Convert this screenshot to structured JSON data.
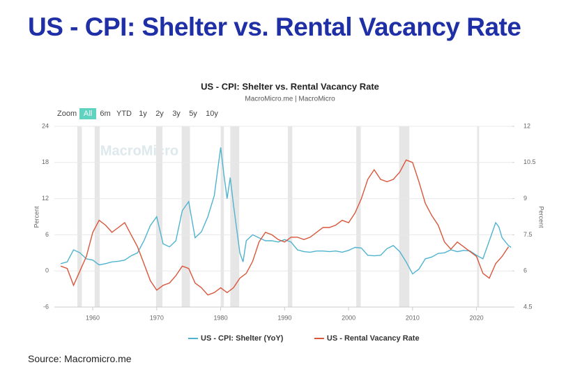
{
  "heading": "US - CPI: Shelter vs. Rental Vacancy Rate",
  "source": "Source: Macromicro.me",
  "chart_data": {
    "type": "line",
    "title": "US - CPI: Shelter vs. Rental Vacancy Rate",
    "subtitle": "MacroMicro.me | MacroMicro",
    "watermark": "MacroMicro",
    "zoom_label": "Zoom",
    "zoom_buttons": [
      "All",
      "6m",
      "YTD",
      "1y",
      "2y",
      "3y",
      "5y",
      "10y"
    ],
    "y_label": "Percent",
    "y2_label": "Percent",
    "xlim": [
      1954,
      2025.6
    ],
    "xticks": [
      1960,
      1970,
      1980,
      1990,
      2000,
      2010,
      2020
    ],
    "ylim": [
      -6,
      24
    ],
    "yticks": [
      -6,
      0,
      6,
      12,
      18,
      24
    ],
    "y2lim": [
      4.5,
      12
    ],
    "y2ticks": [
      4.5,
      6,
      7.5,
      9,
      10.5,
      12
    ],
    "grid": true,
    "recessions": [
      [
        1957.6,
        1958.3
      ],
      [
        1960.3,
        1961.1
      ],
      [
        1969.9,
        1970.9
      ],
      [
        1973.9,
        1975.2
      ],
      [
        1980.0,
        1980.5
      ],
      [
        1981.5,
        1982.9
      ],
      [
        1990.5,
        1991.2
      ],
      [
        2001.2,
        2001.9
      ],
      [
        2007.9,
        2009.5
      ],
      [
        2020.1,
        2020.4
      ]
    ],
    "series": [
      {
        "name": "US - CPI: Shelter (YoY)",
        "color": "#4fb3cf",
        "axis": "y",
        "x": [
          1955,
          1956,
          1957,
          1958,
          1959,
          1960,
          1961,
          1962,
          1963,
          1964,
          1965,
          1966,
          1967,
          1968,
          1969,
          1970,
          1971,
          1972,
          1973,
          1974,
          1975,
          1976,
          1977,
          1978,
          1979,
          1980,
          1980.5,
          1981,
          1981.5,
          1982,
          1983,
          1983.5,
          1984,
          1985,
          1986,
          1987,
          1988,
          1989,
          1990,
          1991,
          1992,
          1993,
          1994,
          1995,
          1996,
          1997,
          1998,
          1999,
          2000,
          2001,
          2002,
          2003,
          2004,
          2005,
          2006,
          2007,
          2008,
          2009,
          2010,
          2011,
          2012,
          2013,
          2014,
          2015,
          2016,
          2017,
          2018,
          2019,
          2020,
          2021,
          2022,
          2023,
          2023.5,
          2024,
          2025,
          2025.4
        ],
        "values": [
          1.2,
          1.5,
          3.5,
          3.0,
          2.0,
          1.8,
          1.0,
          1.2,
          1.5,
          1.6,
          1.8,
          2.5,
          3.0,
          5.0,
          7.5,
          9.0,
          4.5,
          4.0,
          5.0,
          10.0,
          11.5,
          5.5,
          6.5,
          9.0,
          12.5,
          20.5,
          16,
          12,
          15.5,
          11,
          3.0,
          1.5,
          5,
          6.0,
          5.5,
          5.0,
          5.0,
          4.8,
          5.2,
          4.8,
          3.5,
          3.2,
          3.1,
          3.3,
          3.3,
          3.2,
          3.3,
          3.1,
          3.4,
          3.9,
          3.8,
          2.6,
          2.5,
          2.6,
          3.7,
          4.2,
          3.2,
          1.5,
          -0.5,
          0.3,
          2.0,
          2.3,
          2.9,
          3.0,
          3.5,
          3.2,
          3.4,
          3.3,
          2.6,
          2.0,
          5.0,
          8.0,
          7.3,
          5.5,
          4.2,
          3.9
        ]
      },
      {
        "name": "US - Rental Vacancy Rate",
        "color": "#d9563b",
        "axis": "y2",
        "x": [
          1955,
          1956,
          1957,
          1958,
          1959,
          1960,
          1961,
          1962,
          1963,
          1964,
          1965,
          1966,
          1967,
          1968,
          1969,
          1970,
          1971,
          1972,
          1973,
          1974,
          1975,
          1976,
          1977,
          1978,
          1979,
          1980,
          1981,
          1982,
          1983,
          1984,
          1985,
          1986,
          1987,
          1988,
          1989,
          1990,
          1991,
          1992,
          1993,
          1994,
          1995,
          1996,
          1997,
          1998,
          1999,
          2000,
          2001,
          2002,
          2003,
          2004,
          2005,
          2006,
          2007,
          2008,
          2009,
          2010,
          2011,
          2012,
          2013,
          2014,
          2015,
          2016,
          2017,
          2018,
          2019,
          2020,
          2021,
          2022,
          2023,
          2024,
          2025
        ],
        "values": [
          6.2,
          6.1,
          5.4,
          6.0,
          6.6,
          7.6,
          8.1,
          7.9,
          7.6,
          7.8,
          8.0,
          7.5,
          7.0,
          6.3,
          5.6,
          5.2,
          5.4,
          5.5,
          5.8,
          6.2,
          6.1,
          5.5,
          5.3,
          5.0,
          5.1,
          5.3,
          5.1,
          5.3,
          5.7,
          5.9,
          6.4,
          7.2,
          7.6,
          7.5,
          7.3,
          7.2,
          7.4,
          7.4,
          7.3,
          7.4,
          7.6,
          7.8,
          7.8,
          7.9,
          8.1,
          8.0,
          8.4,
          9.0,
          9.8,
          10.2,
          9.8,
          9.7,
          9.8,
          10.1,
          10.6,
          10.5,
          9.7,
          8.8,
          8.3,
          7.9,
          7.2,
          6.9,
          7.2,
          7.0,
          6.8,
          6.6,
          5.9,
          5.7,
          6.3,
          6.6,
          7.0
        ]
      }
    ]
  }
}
